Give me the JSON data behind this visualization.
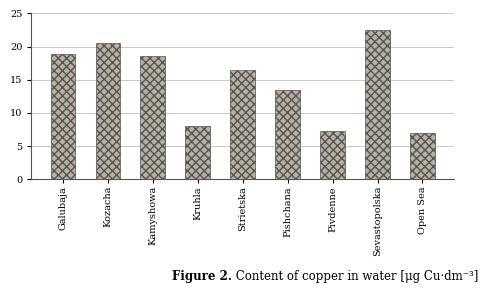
{
  "categories": [
    "Galubaja",
    "Kozacha",
    "Kamyshowa",
    "Kruhla",
    "Strietska",
    "Pishchana",
    "Pivdenne",
    "Sevastopolska",
    "Open Sea"
  ],
  "values": [
    18.8,
    20.6,
    18.6,
    8.0,
    16.5,
    13.4,
    7.2,
    22.5,
    7.0
  ],
  "bar_facecolor": "#b8b0a0",
  "bar_edgecolor": "#555555",
  "hatch": "xxxx",
  "ylim": [
    0,
    25
  ],
  "yticks": [
    0,
    5,
    10,
    15,
    20,
    25
  ],
  "caption_full": "Figure 2. Content of copper in water [μg Cu·dm⁻³]",
  "caption_bold": "Figure 2.",
  "caption_regular": " Content of copper in water [μg Cu·dm⁻³]",
  "caption_fontsize": 8.5,
  "tick_fontsize": 7,
  "background_color": "#ffffff",
  "grid_color": "#c8c8c8",
  "bar_width": 0.55
}
